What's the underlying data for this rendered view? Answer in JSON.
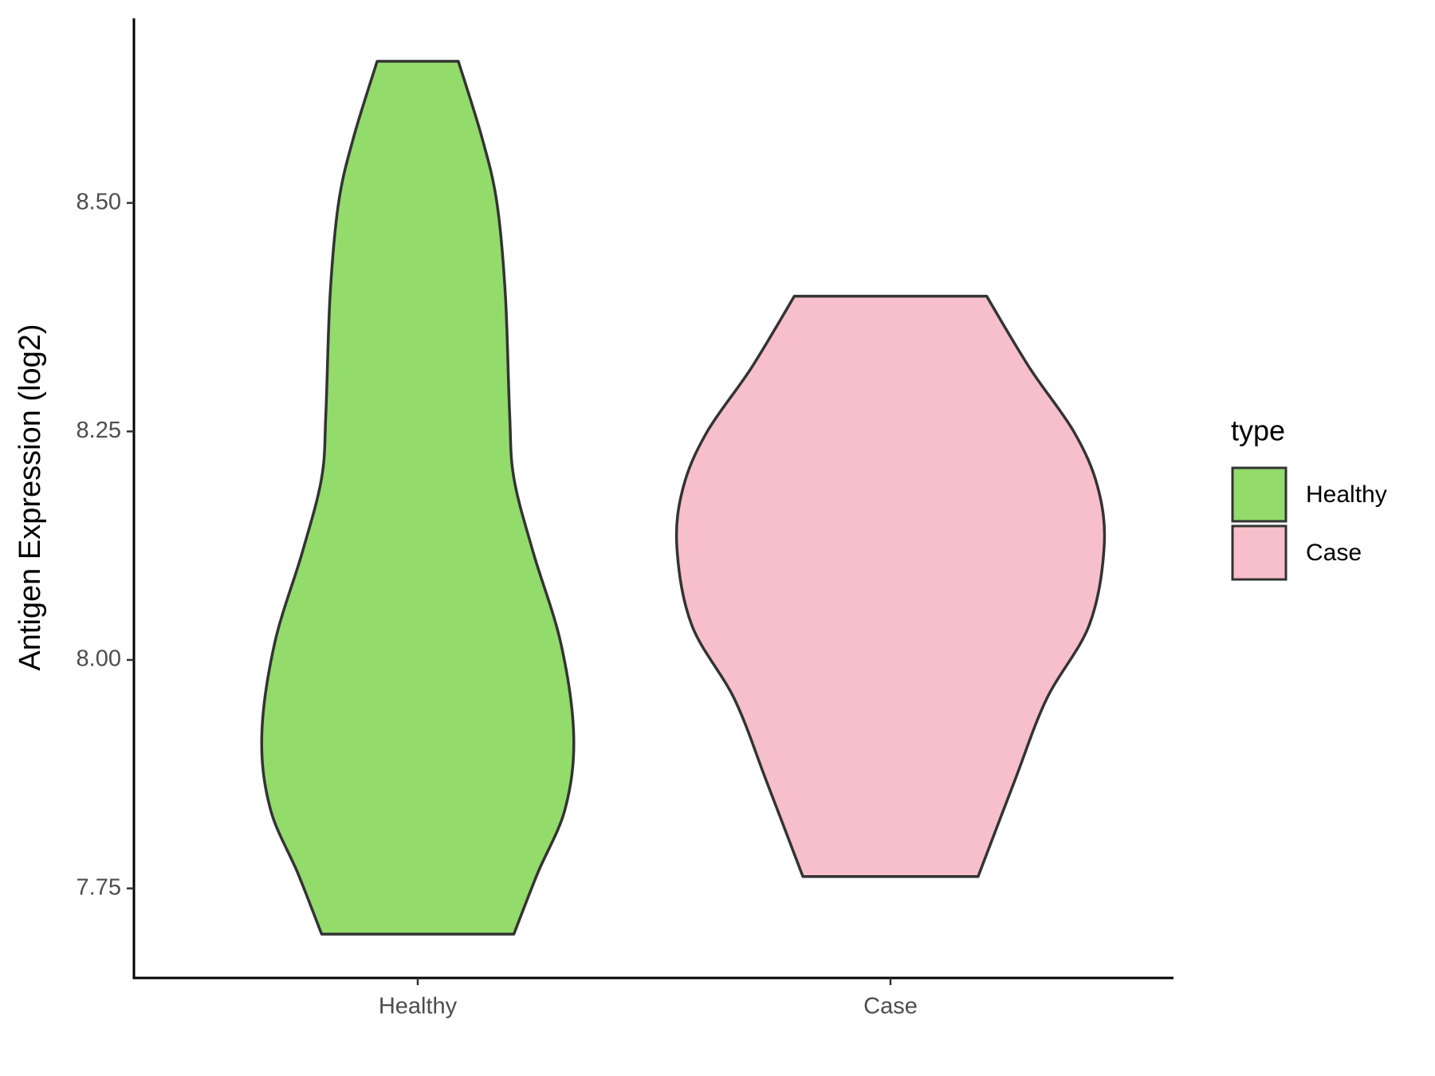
{
  "chart_data": {
    "type": "violin",
    "y_label": "Antigen Expression (log2)",
    "legend_title": "type",
    "legend_position": "right",
    "grid": false,
    "categories": [
      "Healthy",
      "Case"
    ],
    "ylim": [
      7.652,
      8.702
    ],
    "yticks": [
      {
        "value": 7.75,
        "label": "7.75"
      },
      {
        "value": 8.0,
        "label": "8.00"
      },
      {
        "value": 8.25,
        "label": "8.25"
      },
      {
        "value": 8.5,
        "label": "8.50"
      }
    ],
    "series": [
      {
        "name": "Healthy",
        "color": "#93db6b",
        "y": [
          8.655,
          8.572,
          8.501,
          8.4,
          8.27,
          8.199,
          8.118,
          8.018,
          7.917,
          7.837,
          7.766,
          7.7
        ],
        "widths": [
          0.19,
          0.3,
          0.37,
          0.41,
          0.43,
          0.45,
          0.54,
          0.67,
          0.73,
          0.69,
          0.56,
          0.45
        ]
      },
      {
        "name": "Case",
        "color": "#f7bfcb",
        "y": [
          8.398,
          8.32,
          8.249,
          8.189,
          8.124,
          8.038,
          7.957,
          7.867,
          7.763
        ],
        "widths": [
          0.45,
          0.65,
          0.86,
          0.97,
          1.0,
          0.93,
          0.73,
          0.58,
          0.41
        ]
      }
    ]
  }
}
